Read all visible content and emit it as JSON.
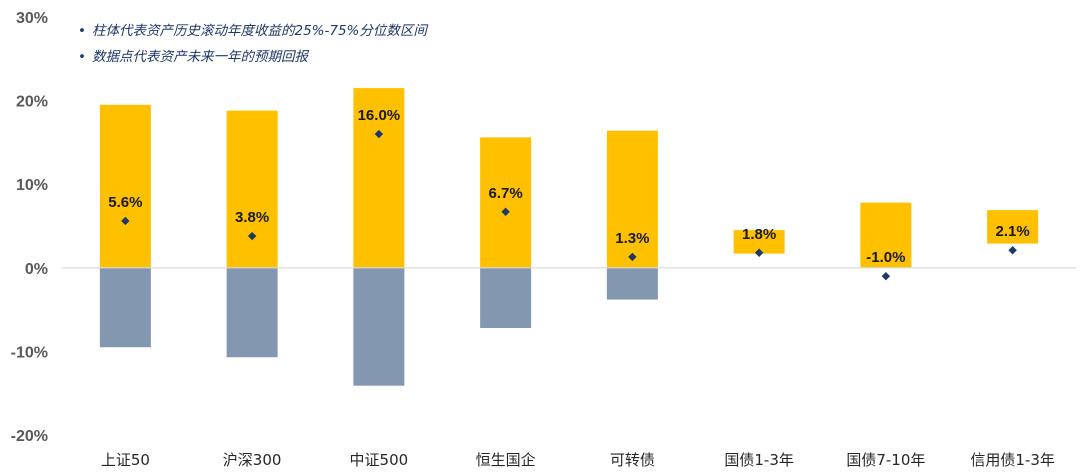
{
  "legend": {
    "items": [
      "柱体代表资产历史滚动年度收益的25%-75%分位数区间",
      "数据点代表资产未来一年的预期回报"
    ],
    "bullet": "•"
  },
  "chart_data": {
    "type": "bar",
    "title": "",
    "xlabel": "",
    "ylabel": "",
    "ylim": [
      -20,
      30
    ],
    "yticks": [
      "-20%",
      "-10%",
      "0%",
      "10%",
      "20%",
      "30%"
    ],
    "ytick_values": [
      -20,
      -10,
      0,
      10,
      20,
      30
    ],
    "grid": false,
    "legend_position": "top-left",
    "categories": [
      "上证50",
      "沪深300",
      "中证500",
      "恒生国企",
      "可转债",
      "国债1-3年",
      "国债7-10年",
      "信用债1-3年"
    ],
    "ranges": [
      [
        -9.5,
        19.5
      ],
      [
        -10.7,
        18.8
      ],
      [
        -14.1,
        21.5
      ],
      [
        -7.2,
        15.6
      ],
      [
        -3.8,
        16.4
      ],
      [
        1.7,
        4.5
      ],
      [
        0.0,
        7.8
      ],
      [
        2.9,
        6.9
      ]
    ],
    "expected_returns": [
      5.6,
      3.8,
      16.0,
      6.7,
      1.3,
      1.8,
      -1.0,
      2.1
    ],
    "expected_return_labels": [
      "5.6%",
      "3.8%",
      "16.0%",
      "6.7%",
      "1.3%",
      "1.8%",
      "-1.0%",
      "2.1%"
    ],
    "colors": {
      "positive_bar": "#FFC000",
      "negative_bar": "#8497B0",
      "marker": "#1F3864",
      "axis": "#D9D9D9"
    }
  }
}
